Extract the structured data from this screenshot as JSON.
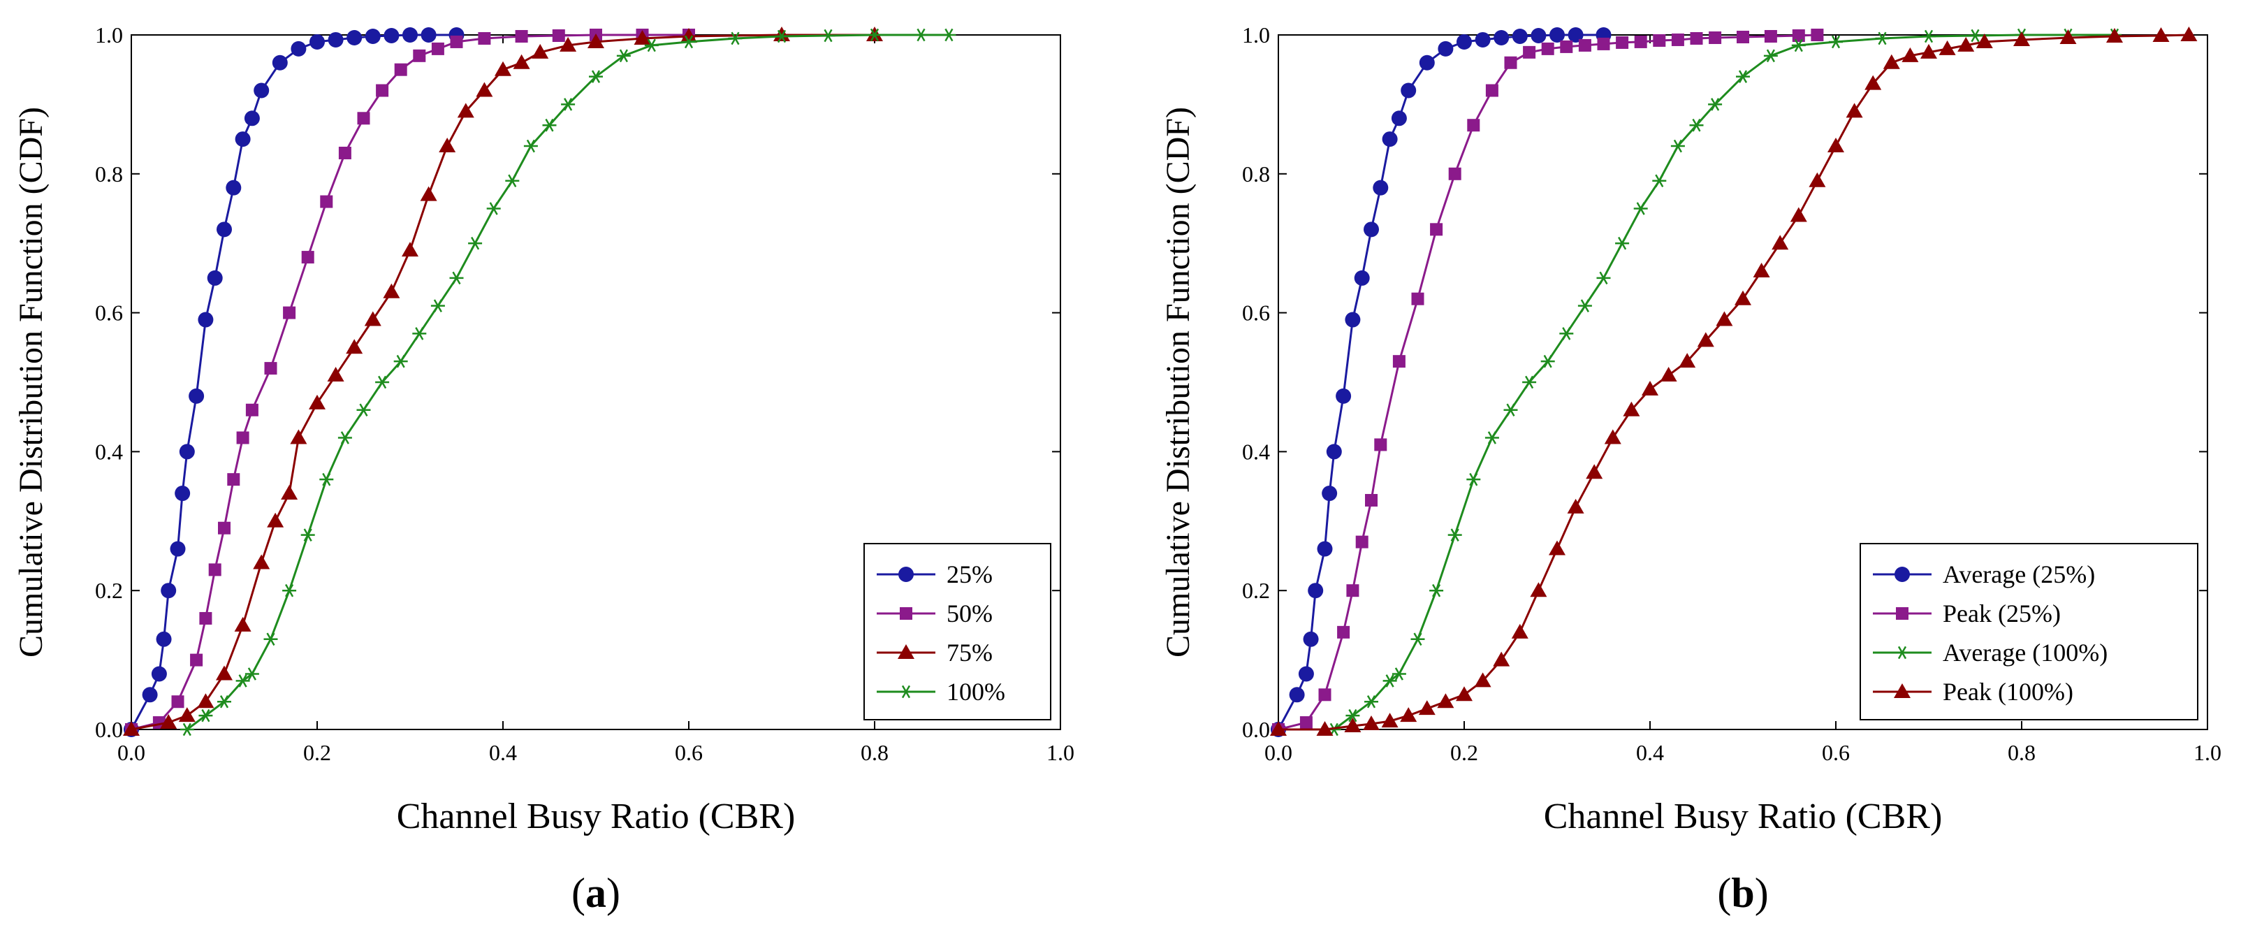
{
  "chart_data": [
    {
      "type": "line",
      "panel_label": "a",
      "xlabel": "Channel Busy Ratio (CBR)",
      "ylabel": "Cumulative Distribution Function (CDF)",
      "xlim": [
        0,
        1
      ],
      "ylim": [
        0,
        1
      ],
      "x_ticks": [
        "0.0",
        "0.2",
        "0.4",
        "0.6",
        "0.8",
        "1.0"
      ],
      "y_ticks": [
        "0.0",
        "0.2",
        "0.4",
        "0.6",
        "0.8",
        "1.0"
      ],
      "legend": "bottom-right",
      "series": [
        {
          "name": "25%",
          "color": "#1a1aa0",
          "marker": "circle",
          "x": [
            0.0,
            0.02,
            0.03,
            0.035,
            0.04,
            0.05,
            0.055,
            0.06,
            0.07,
            0.08,
            0.09,
            0.1,
            0.11,
            0.12,
            0.13,
            0.14,
            0.16,
            0.18,
            0.2,
            0.22,
            0.24,
            0.26,
            0.28,
            0.3,
            0.32,
            0.35
          ],
          "y": [
            0.0,
            0.05,
            0.08,
            0.13,
            0.2,
            0.26,
            0.34,
            0.4,
            0.48,
            0.59,
            0.65,
            0.72,
            0.78,
            0.85,
            0.88,
            0.92,
            0.96,
            0.98,
            0.99,
            0.993,
            0.996,
            0.998,
            0.999,
            1.0,
            1.0,
            1.0
          ]
        },
        {
          "name": "50%",
          "color": "#8b1a8b",
          "marker": "square",
          "x": [
            0.0,
            0.03,
            0.05,
            0.07,
            0.08,
            0.09,
            0.1,
            0.11,
            0.12,
            0.13,
            0.15,
            0.17,
            0.19,
            0.21,
            0.23,
            0.25,
            0.27,
            0.29,
            0.31,
            0.33,
            0.35,
            0.38,
            0.42,
            0.46,
            0.5,
            0.55,
            0.6
          ],
          "y": [
            0.0,
            0.01,
            0.04,
            0.1,
            0.16,
            0.23,
            0.29,
            0.36,
            0.42,
            0.46,
            0.52,
            0.6,
            0.68,
            0.76,
            0.83,
            0.88,
            0.92,
            0.95,
            0.97,
            0.98,
            0.99,
            0.995,
            0.998,
            0.999,
            1.0,
            1.0,
            1.0
          ]
        },
        {
          "name": "75%",
          "color": "#8b0000",
          "marker": "triangle",
          "x": [
            0.0,
            0.04,
            0.06,
            0.08,
            0.1,
            0.12,
            0.14,
            0.155,
            0.17,
            0.18,
            0.2,
            0.22,
            0.24,
            0.26,
            0.28,
            0.3,
            0.32,
            0.34,
            0.36,
            0.38,
            0.4,
            0.42,
            0.44,
            0.47,
            0.5,
            0.55,
            0.6,
            0.7,
            0.8
          ],
          "y": [
            0.0,
            0.01,
            0.02,
            0.04,
            0.08,
            0.15,
            0.24,
            0.3,
            0.34,
            0.42,
            0.47,
            0.51,
            0.55,
            0.59,
            0.63,
            0.69,
            0.77,
            0.84,
            0.89,
            0.92,
            0.95,
            0.96,
            0.975,
            0.985,
            0.99,
            0.995,
            0.998,
            1.0,
            1.0
          ]
        },
        {
          "name": "100%",
          "color": "#1e8c1e",
          "marker": "asterisk",
          "x": [
            0.06,
            0.08,
            0.1,
            0.12,
            0.13,
            0.15,
            0.17,
            0.19,
            0.21,
            0.23,
            0.25,
            0.27,
            0.29,
            0.31,
            0.33,
            0.35,
            0.37,
            0.39,
            0.41,
            0.43,
            0.45,
            0.47,
            0.5,
            0.53,
            0.56,
            0.6,
            0.65,
            0.7,
            0.75,
            0.8,
            0.85,
            0.88
          ],
          "y": [
            0.0,
            0.02,
            0.04,
            0.07,
            0.08,
            0.13,
            0.2,
            0.28,
            0.36,
            0.42,
            0.46,
            0.5,
            0.53,
            0.57,
            0.61,
            0.65,
            0.7,
            0.75,
            0.79,
            0.84,
            0.87,
            0.9,
            0.94,
            0.97,
            0.985,
            0.99,
            0.995,
            0.998,
            0.999,
            1.0,
            1.0,
            1.0
          ]
        }
      ]
    },
    {
      "type": "line",
      "panel_label": "b",
      "xlabel": "Channel Busy Ratio (CBR)",
      "ylabel": "Cumulative Distribution Function (CDF)",
      "xlim": [
        0,
        1
      ],
      "ylim": [
        0,
        1
      ],
      "x_ticks": [
        "0.0",
        "0.2",
        "0.4",
        "0.6",
        "0.8",
        "1.0"
      ],
      "y_ticks": [
        "0.0",
        "0.2",
        "0.4",
        "0.6",
        "0.8",
        "1.0"
      ],
      "legend": "bottom-right",
      "series": [
        {
          "name": "Average (25%)",
          "color": "#1a1aa0",
          "marker": "circle",
          "x": [
            0.0,
            0.02,
            0.03,
            0.035,
            0.04,
            0.05,
            0.055,
            0.06,
            0.07,
            0.08,
            0.09,
            0.1,
            0.11,
            0.12,
            0.13,
            0.14,
            0.16,
            0.18,
            0.2,
            0.22,
            0.24,
            0.26,
            0.28,
            0.3,
            0.32,
            0.35
          ],
          "y": [
            0.0,
            0.05,
            0.08,
            0.13,
            0.2,
            0.26,
            0.34,
            0.4,
            0.48,
            0.59,
            0.65,
            0.72,
            0.78,
            0.85,
            0.88,
            0.92,
            0.96,
            0.98,
            0.99,
            0.993,
            0.996,
            0.998,
            0.999,
            1.0,
            1.0,
            1.0
          ]
        },
        {
          "name": "Peak (25%)",
          "color": "#8b1a8b",
          "marker": "square",
          "x": [
            0.0,
            0.03,
            0.05,
            0.07,
            0.08,
            0.09,
            0.1,
            0.11,
            0.13,
            0.15,
            0.17,
            0.19,
            0.21,
            0.23,
            0.25,
            0.27,
            0.29,
            0.31,
            0.33,
            0.35,
            0.37,
            0.39,
            0.41,
            0.43,
            0.45,
            0.47,
            0.5,
            0.53,
            0.56,
            0.58
          ],
          "y": [
            0.0,
            0.01,
            0.05,
            0.14,
            0.2,
            0.27,
            0.33,
            0.41,
            0.53,
            0.62,
            0.72,
            0.8,
            0.87,
            0.92,
            0.96,
            0.975,
            0.98,
            0.983,
            0.985,
            0.987,
            0.989,
            0.99,
            0.992,
            0.993,
            0.995,
            0.996,
            0.997,
            0.998,
            0.999,
            1.0
          ]
        },
        {
          "name": "Average (100%)",
          "color": "#1e8c1e",
          "marker": "asterisk",
          "x": [
            0.06,
            0.08,
            0.1,
            0.12,
            0.13,
            0.15,
            0.17,
            0.19,
            0.21,
            0.23,
            0.25,
            0.27,
            0.29,
            0.31,
            0.33,
            0.35,
            0.37,
            0.39,
            0.41,
            0.43,
            0.45,
            0.47,
            0.5,
            0.53,
            0.56,
            0.6,
            0.65,
            0.7,
            0.75,
            0.8,
            0.85,
            0.9
          ],
          "y": [
            0.0,
            0.02,
            0.04,
            0.07,
            0.08,
            0.13,
            0.2,
            0.28,
            0.36,
            0.42,
            0.46,
            0.5,
            0.53,
            0.57,
            0.61,
            0.65,
            0.7,
            0.75,
            0.79,
            0.84,
            0.87,
            0.9,
            0.94,
            0.97,
            0.985,
            0.99,
            0.995,
            0.998,
            0.999,
            1.0,
            1.0,
            1.0
          ]
        },
        {
          "name": "Peak (100%)",
          "color": "#8b0000",
          "marker": "triangle",
          "x": [
            0.0,
            0.05,
            0.08,
            0.1,
            0.12,
            0.14,
            0.16,
            0.18,
            0.2,
            0.22,
            0.24,
            0.26,
            0.28,
            0.3,
            0.32,
            0.34,
            0.36,
            0.38,
            0.4,
            0.42,
            0.44,
            0.46,
            0.48,
            0.5,
            0.52,
            0.54,
            0.56,
            0.58,
            0.6,
            0.62,
            0.64,
            0.66,
            0.68,
            0.7,
            0.72,
            0.74,
            0.76,
            0.8,
            0.85,
            0.9,
            0.95,
            0.98
          ],
          "y": [
            0.0,
            0.0,
            0.005,
            0.008,
            0.012,
            0.02,
            0.03,
            0.04,
            0.05,
            0.07,
            0.1,
            0.14,
            0.2,
            0.26,
            0.32,
            0.37,
            0.42,
            0.46,
            0.49,
            0.51,
            0.53,
            0.56,
            0.59,
            0.62,
            0.66,
            0.7,
            0.74,
            0.79,
            0.84,
            0.89,
            0.93,
            0.96,
            0.97,
            0.975,
            0.98,
            0.985,
            0.99,
            0.993,
            0.996,
            0.998,
            0.999,
            1.0
          ]
        }
      ]
    }
  ]
}
